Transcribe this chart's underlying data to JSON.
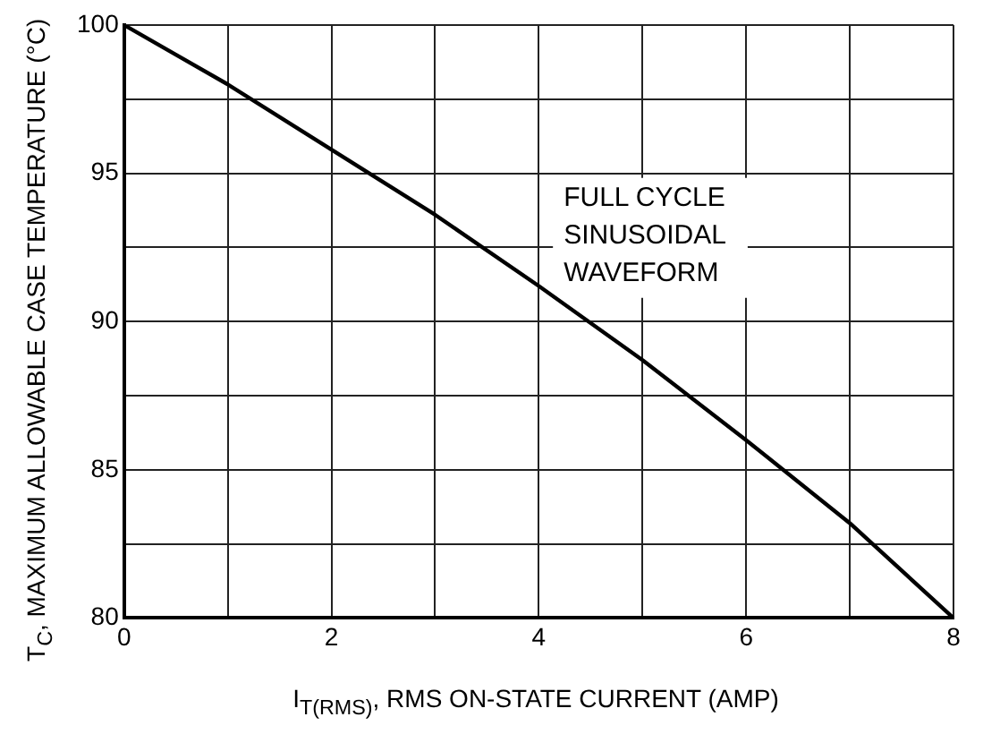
{
  "chart_data": {
    "type": "line",
    "xlabel": "I$_{T(RMS)}$, RMS ON-STATE CURRENT (AMP)",
    "ylabel": "T$_{C}$, MAXIMUM ALLOWABLE CASE TEMPERATURE (°C)",
    "x": [
      0,
      0.5,
      1,
      2,
      3,
      4,
      5,
      6,
      7,
      7.5,
      8
    ],
    "series": [
      {
        "color": "#000000",
        "values": [
          100,
          99.0,
          98.0,
          95.8,
          93.6,
          91.2,
          88.7,
          86.0,
          83.2,
          81.6,
          80
        ]
      }
    ],
    "xlim": [
      0,
      8
    ],
    "xticks": [
      0,
      {
        "value": 1,
        "label": null
      },
      2,
      {
        "value": 3,
        "label": null
      },
      4,
      {
        "value": 5,
        "label": null
      },
      6,
      {
        "value": 7,
        "label": null
      },
      8
    ],
    "ylim": [
      80,
      100
    ],
    "yticks": [
      80,
      {
        "value": 82.5,
        "label": null
      },
      85,
      {
        "value": 87.5,
        "label": null
      },
      90,
      {
        "value": 92.5,
        "label": null
      },
      95,
      {
        "value": 97.5,
        "label": null
      },
      100
    ],
    "annotations": [
      "FULL CYCLE\nSINUSOIDAL\nWAVEFORM"
    ],
    "grid": true,
    "legend": false,
    "marker": "none",
    "line_style": "solid"
  }
}
